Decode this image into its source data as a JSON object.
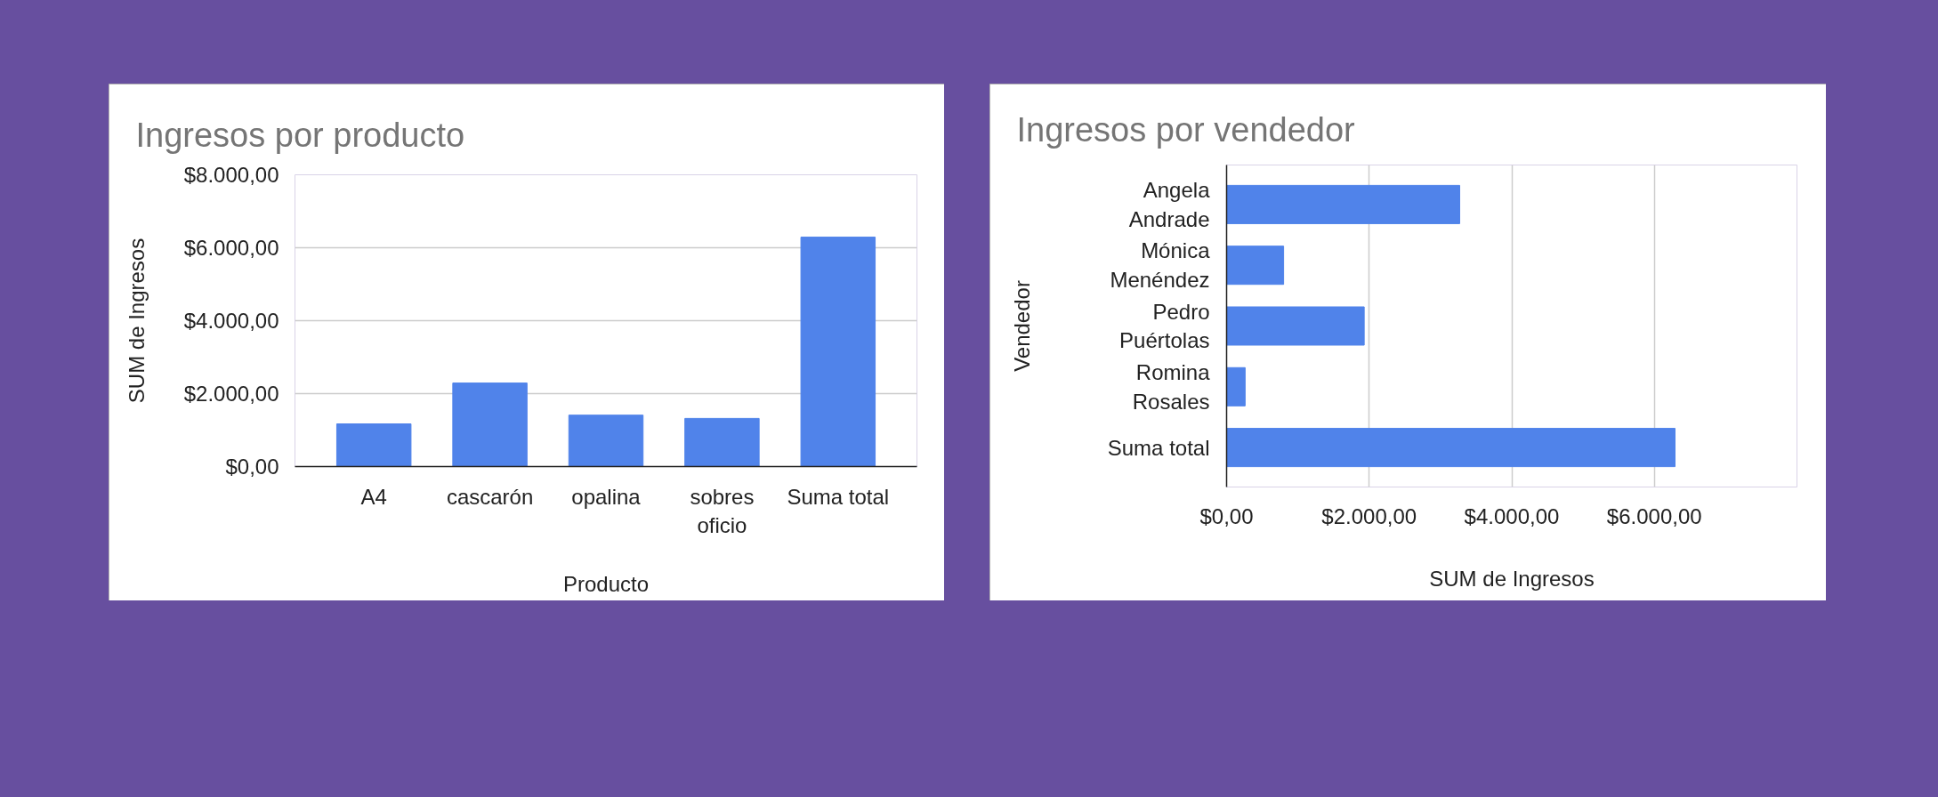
{
  "chart_data": [
    {
      "type": "bar",
      "title": "Ingresos por producto",
      "xlabel": "Producto",
      "ylabel": "SUM de Ingresos",
      "categories": [
        "A4",
        "cascarón",
        "opalina",
        "sobres oficio",
        "Suma total"
      ],
      "values": [
        1170,
        2290,
        1410,
        1320,
        6290
      ],
      "color": "#5083ea",
      "ylim": [
        0,
        8000
      ],
      "yticks": [
        {
          "value": 0,
          "label": "$0,00"
        },
        {
          "value": 2000,
          "label": "$2.000,00"
        },
        {
          "value": 4000,
          "label": "$4.000,00"
        },
        {
          "value": 6000,
          "label": "$6.000,00"
        },
        {
          "value": 8000,
          "label": "$8.000,00"
        }
      ],
      "grid": "y"
    },
    {
      "type": "bar",
      "orientation": "horizontal",
      "title": "Ingresos por vendedor",
      "xlabel": "SUM de Ingresos",
      "ylabel": "Vendedor",
      "categories": [
        "Angela Andrade",
        "Mónica Menéndez",
        "Pedro Puértolas",
        "Romina Rosales",
        "Suma total"
      ],
      "values": [
        3270,
        800,
        1930,
        260,
        6290
      ],
      "color": "#5083ea",
      "xlim": [
        0,
        8000
      ],
      "xticks": [
        {
          "value": 0,
          "label": "$0,00"
        },
        {
          "value": 2000,
          "label": "$2.000,00"
        },
        {
          "value": 4000,
          "label": "$4.000,00"
        },
        {
          "value": 6000,
          "label": "$6.000,00"
        },
        {
          "value": 8000,
          "label": null
        }
      ],
      "grid": "x"
    }
  ]
}
